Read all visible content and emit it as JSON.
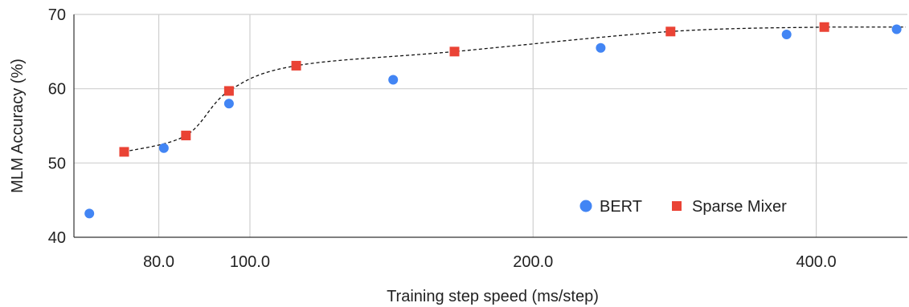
{
  "chart_data": {
    "type": "scatter",
    "title": "",
    "xlabel": "Training step speed (ms/step)",
    "ylabel": "MLM Accuracy (%)",
    "x_scale": "log",
    "xlim": [
      65,
      500
    ],
    "ylim": [
      40,
      70
    ],
    "x_ticks": [
      80,
      100,
      200,
      400
    ],
    "x_tick_labels": [
      "80.0",
      "100.0",
      "200.0",
      "400.0"
    ],
    "y_ticks": [
      40,
      50,
      60,
      70
    ],
    "y_tick_labels": [
      "40",
      "50",
      "60",
      "70"
    ],
    "grid": true,
    "legend_position": "bottom-right",
    "series": [
      {
        "name": "BERT",
        "marker": "circle",
        "color": "#4285F4",
        "x": [
          67.5,
          81,
          95,
          142,
          236,
          372,
          487
        ],
        "y": [
          43.2,
          52.0,
          58.0,
          61.2,
          65.5,
          67.3,
          68.0
        ]
      },
      {
        "name": "Sparse Mixer",
        "marker": "square",
        "color": "#EA4335",
        "trendline": "dashed",
        "x": [
          73.5,
          85.5,
          95,
          112,
          165,
          280,
          408
        ],
        "y": [
          51.5,
          53.7,
          59.7,
          63.1,
          65.0,
          67.7,
          68.3
        ]
      }
    ]
  }
}
